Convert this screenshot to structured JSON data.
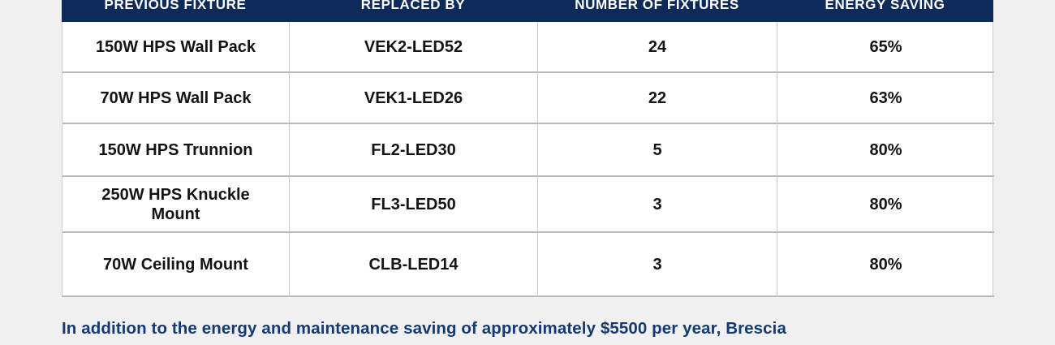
{
  "table": {
    "columns": [
      "PREVIOUS FIXTURE",
      "REPLACED BY",
      "NUMBER OF FIXTURES",
      "ENERGY SAVING"
    ],
    "rows": [
      [
        "150W HPS Wall Pack",
        "VEK2-LED52",
        "24",
        "65%"
      ],
      [
        "70W HPS Wall Pack",
        "VEK1-LED26",
        "22",
        "63%"
      ],
      [
        "150W HPS Trunnion",
        "FL2-LED30",
        "5",
        "80%"
      ],
      [
        "250W HPS Knuckle Mount",
        "FL3-LED50",
        "3",
        "80%"
      ],
      [
        "70W Ceiling Mount",
        "CLB-LED14",
        "3",
        "80%"
      ]
    ]
  },
  "footer": {
    "text": "In addition to the energy and maintenance saving of approximately $5500 per year, Brescia"
  },
  "colors": {
    "header_bg": "#0e2a5a",
    "header_text": "#ffffff",
    "body_text": "#141414",
    "footer_text": "#143a71",
    "page_bg": "#f0f0f0",
    "grid_line": "#bbbbbb"
  }
}
